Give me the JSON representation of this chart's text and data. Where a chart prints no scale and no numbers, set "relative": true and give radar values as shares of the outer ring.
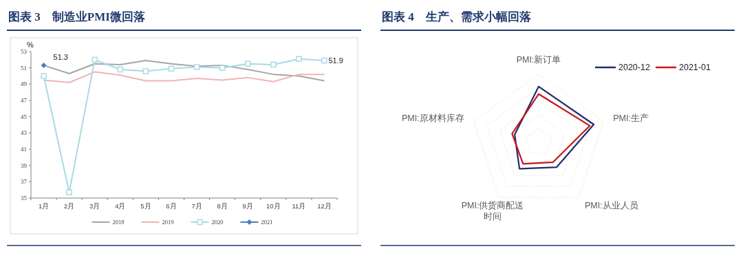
{
  "chart_data": [
    {
      "type": "line",
      "title": "图表 3　制造业PMI微回落",
      "ylabel": "%",
      "categories": [
        "1月",
        "2月",
        "3月",
        "4月",
        "5月",
        "6月",
        "7月",
        "8月",
        "9月",
        "10月",
        "11月",
        "12月"
      ],
      "ylim": [
        35,
        53
      ],
      "yticks": [
        35,
        37,
        39,
        41,
        43,
        45,
        47,
        49,
        51,
        53
      ],
      "grid": false,
      "legend": "bottom",
      "series": [
        {
          "name": "2018",
          "color": "#a6a6a6",
          "marker": "none",
          "values": [
            51.3,
            50.3,
            51.5,
            51.4,
            51.9,
            51.5,
            51.2,
            51.3,
            50.8,
            50.2,
            50.0,
            49.4
          ]
        },
        {
          "name": "2019",
          "color": "#f0b4b4",
          "marker": "none",
          "values": [
            49.5,
            49.2,
            50.5,
            50.1,
            49.4,
            49.4,
            49.7,
            49.5,
            49.8,
            49.3,
            50.2,
            50.2
          ]
        },
        {
          "name": "2020",
          "color": "#a8dae6",
          "marker": "square",
          "values": [
            50.0,
            35.7,
            52.0,
            50.8,
            50.6,
            50.9,
            51.1,
            51.0,
            51.5,
            51.4,
            52.1,
            51.9
          ]
        },
        {
          "name": "2021",
          "color": "#4a7ebb",
          "marker": "diamond",
          "values": [
            51.3,
            null,
            null,
            null,
            null,
            null,
            null,
            null,
            null,
            null,
            null,
            null
          ]
        }
      ],
      "annotations": [
        {
          "text": "51.3",
          "x": "1月",
          "y": 51.3
        },
        {
          "text": "51.9",
          "x": "12月",
          "y": 51.9
        }
      ]
    },
    {
      "type": "radar",
      "title": "图表 4　生产、需求小幅回落",
      "relative": true,
      "grid": true,
      "legend": "top right",
      "categories": [
        "PMI:新订单",
        "PMI:生产",
        "PMI:从业人员",
        "PMI:供货商配送时间",
        "PMI:原材料库存"
      ],
      "series": [
        {
          "name": "2020-12",
          "color": "#1f2d6e",
          "values": [
            0.82,
            0.85,
            0.45,
            0.48,
            0.37
          ]
        },
        {
          "name": "2021-01",
          "color": "#c8141e",
          "values": [
            0.71,
            0.79,
            0.36,
            0.39,
            0.41
          ]
        }
      ]
    }
  ]
}
